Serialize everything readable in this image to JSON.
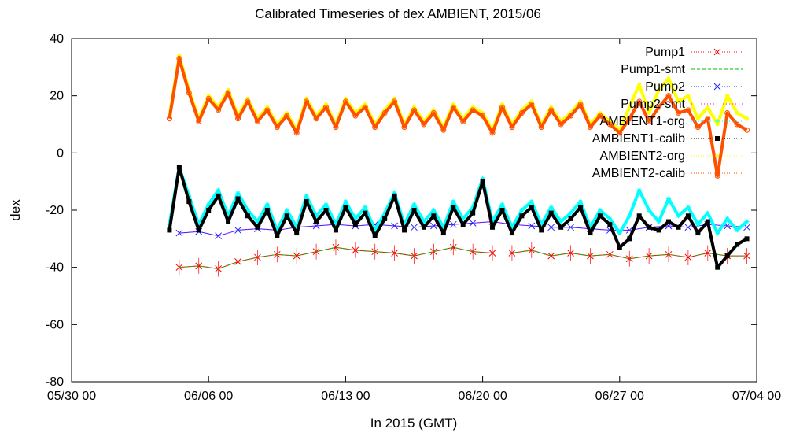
{
  "chart_data": {
    "type": "line",
    "title": "Calibrated Timeseries of dex AMBIENT, 2015/06",
    "xlabel": "In 2015 (GMT)",
    "ylabel": "dex",
    "xlim": [
      "2015-05-30 00:00",
      "2015-07-04 00:00"
    ],
    "ylim": [
      -80,
      40
    ],
    "x_ticks": [
      "05/30 00",
      "06/06 00",
      "06/13 00",
      "06/20 00",
      "06/27 00",
      "07/04 00"
    ],
    "y_ticks": [
      "40",
      "20",
      "0",
      "-20",
      "-40",
      "-60",
      "-80"
    ],
    "grid": false,
    "legend_position": "top-right",
    "series": [
      {
        "name": "Pump1",
        "color": "#ff0000",
        "marker": "x",
        "error_bars": true,
        "x": [
          "06/04 12",
          "06/05 12",
          "06/06 12",
          "06/07 12",
          "06/08 12",
          "06/09 12",
          "06/10 12",
          "06/11 12",
          "06/12 12",
          "06/13 12",
          "06/14 12",
          "06/15 12",
          "06/16 12",
          "06/17 12",
          "06/18 12",
          "06/19 12",
          "06/20 12",
          "06/21 12",
          "06/22 12",
          "06/23 12",
          "06/24 12",
          "06/25 12",
          "06/26 12",
          "06/27 12",
          "06/28 12",
          "06/29 12",
          "06/30 12",
          "07/01 12",
          "07/02 12",
          "07/03 12"
        ],
        "values": [
          -40,
          -39.5,
          -40.5,
          -38,
          -36.5,
          -35.5,
          -36,
          -34.5,
          -33,
          -34,
          -34.5,
          -35,
          -36,
          -34.5,
          -33,
          -34.5,
          -35,
          -35,
          -34,
          -36,
          -35,
          -36,
          -35.5,
          -37,
          -36,
          -35.5,
          -36.5,
          -35,
          -36,
          -36
        ]
      },
      {
        "name": "Pump1-smt",
        "color": "#00c000",
        "style": "dashed",
        "x": [
          "06/04 12",
          "06/05 12",
          "06/06 12",
          "06/07 12",
          "06/08 12",
          "06/09 12",
          "06/10 12",
          "06/11 12",
          "06/12 12",
          "06/13 12",
          "06/14 12",
          "06/15 12",
          "06/16 12",
          "06/17 12",
          "06/18 12",
          "06/19 12",
          "06/20 12",
          "06/21 12",
          "06/22 12",
          "06/23 12",
          "06/24 12",
          "06/25 12",
          "06/26 12",
          "06/27 12",
          "06/28 12",
          "06/29 12",
          "06/30 12",
          "07/01 12",
          "07/02 12",
          "07/03 12"
        ],
        "values": [
          -40,
          -39.5,
          -40.5,
          -38,
          -36.5,
          -35.5,
          -36,
          -34.5,
          -33,
          -34,
          -34.5,
          -35,
          -36,
          -34.5,
          -33,
          -34.5,
          -35,
          -35,
          -34,
          -36,
          -35,
          -36,
          -35.5,
          -37,
          -36,
          -35.5,
          -36.5,
          -35,
          -36,
          -36
        ]
      },
      {
        "name": "Pump2",
        "color": "#2020ff",
        "marker": "x",
        "x": [
          "06/04 12",
          "06/05 12",
          "06/06 12",
          "06/07 12",
          "06/08 12",
          "06/09 12",
          "06/10 12",
          "06/11 12",
          "06/12 12",
          "06/13 12",
          "06/14 12",
          "06/15 12",
          "06/16 12",
          "06/17 12",
          "06/18 12",
          "06/19 12",
          "06/20 12",
          "06/21 12",
          "06/22 12",
          "06/23 12",
          "06/24 12",
          "06/25 12",
          "06/26 12",
          "06/27 12",
          "06/28 12",
          "06/29 12",
          "06/30 12",
          "07/01 12",
          "07/02 12",
          "07/03 12"
        ],
        "values": [
          -28,
          -27.5,
          -29,
          -27,
          -26.5,
          -27,
          -26,
          -25.5,
          -25,
          -25.5,
          -25,
          -25.5,
          -26,
          -25.5,
          -25,
          -24.5,
          -24,
          -25,
          -25.5,
          -26,
          -26,
          -26.5,
          -27,
          -27,
          -26,
          -25.5,
          -26,
          -25,
          -25.5,
          -26
        ]
      },
      {
        "name": "Pump2-smt",
        "color": "#ff00ff",
        "style": "dotted",
        "x": [
          "06/04 12",
          "06/05 12",
          "06/06 12",
          "06/07 12",
          "06/08 12",
          "06/09 12",
          "06/10 12",
          "06/11 12",
          "06/12 12",
          "06/13 12",
          "06/14 12",
          "06/15 12",
          "06/16 12",
          "06/17 12",
          "06/18 12",
          "06/19 12",
          "06/20 12",
          "06/21 12",
          "06/22 12",
          "06/23 12",
          "06/24 12",
          "06/25 12",
          "06/26 12",
          "06/27 12",
          "06/28 12",
          "06/29 12",
          "06/30 12",
          "07/01 12",
          "07/02 12",
          "07/03 12"
        ],
        "values": [
          -28,
          -27.5,
          -29,
          -27,
          -26.5,
          -27,
          -26,
          -25.5,
          -25,
          -25.5,
          -25,
          -25.5,
          -26,
          -25.5,
          -25,
          -24.5,
          -24,
          -25,
          -25.5,
          -26,
          -26,
          -26.5,
          -27,
          -27,
          -26,
          -25.5,
          -26,
          -25,
          -25.5,
          -26
        ]
      },
      {
        "name": "AMBIENT1-org",
        "color": "#00ffff",
        "marker": "*",
        "x": [
          "06/04 00",
          "06/04 12",
          "06/05 00",
          "06/05 12",
          "06/06 00",
          "06/06 12",
          "06/07 00",
          "06/07 12",
          "06/08 00",
          "06/08 12",
          "06/09 00",
          "06/09 12",
          "06/10 00",
          "06/10 12",
          "06/11 00",
          "06/11 12",
          "06/12 00",
          "06/12 12",
          "06/13 00",
          "06/13 12",
          "06/14 00",
          "06/14 12",
          "06/15 00",
          "06/15 12",
          "06/16 00",
          "06/16 12",
          "06/17 00",
          "06/17 12",
          "06/18 00",
          "06/18 12",
          "06/19 00",
          "06/19 12",
          "06/20 00",
          "06/20 12",
          "06/21 00",
          "06/21 12",
          "06/22 00",
          "06/22 12",
          "06/23 00",
          "06/23 12",
          "06/24 00",
          "06/24 12",
          "06/25 00",
          "06/25 12",
          "06/26 00",
          "06/26 12",
          "06/27 00",
          "06/27 12",
          "06/28 00",
          "06/28 12",
          "06/29 00",
          "06/29 12",
          "06/30 00",
          "06/30 12",
          "07/01 00",
          "07/01 12",
          "07/02 00",
          "07/02 12",
          "07/03 00",
          "07/03 12"
        ],
        "values": [
          -25,
          -5,
          -15,
          -25,
          -18,
          -13,
          -22,
          -14,
          -20,
          -24,
          -18,
          -27,
          -20,
          -26,
          -15,
          -22,
          -18,
          -25,
          -17,
          -23,
          -19,
          -27,
          -21,
          -14,
          -25,
          -18,
          -24,
          -20,
          -26,
          -17,
          -23,
          -19,
          -9,
          -24,
          -18,
          -26,
          -20,
          -17,
          -25,
          -19,
          -24,
          -21,
          -17,
          -26,
          -20,
          -23,
          -28,
          -22,
          -13,
          -20,
          -24,
          -16,
          -22,
          -19,
          -25,
          -21,
          -28,
          -23,
          -27,
          -24
        ]
      },
      {
        "name": "AMBIENT1-calib",
        "color": "#000000",
        "marker": "square",
        "x": [
          "06/04 00",
          "06/04 12",
          "06/05 00",
          "06/05 12",
          "06/06 00",
          "06/06 12",
          "06/07 00",
          "06/07 12",
          "06/08 00",
          "06/08 12",
          "06/09 00",
          "06/09 12",
          "06/10 00",
          "06/10 12",
          "06/11 00",
          "06/11 12",
          "06/12 00",
          "06/12 12",
          "06/13 00",
          "06/13 12",
          "06/14 00",
          "06/14 12",
          "06/15 00",
          "06/15 12",
          "06/16 00",
          "06/16 12",
          "06/17 00",
          "06/17 12",
          "06/18 00",
          "06/18 12",
          "06/19 00",
          "06/19 12",
          "06/20 00",
          "06/20 12",
          "06/21 00",
          "06/21 12",
          "06/22 00",
          "06/22 12",
          "06/23 00",
          "06/23 12",
          "06/24 00",
          "06/24 12",
          "06/25 00",
          "06/25 12",
          "06/26 00",
          "06/26 12",
          "06/27 00",
          "06/27 12",
          "06/28 00",
          "06/28 12",
          "06/29 00",
          "06/29 12",
          "06/30 00",
          "06/30 12",
          "07/01 00",
          "07/01 12",
          "07/02 00",
          "07/02 12",
          "07/03 00",
          "07/03 12"
        ],
        "values": [
          -27,
          -5,
          -17,
          -27,
          -20,
          -15,
          -24,
          -16,
          -22,
          -26,
          -20,
          -29,
          -22,
          -28,
          -17,
          -24,
          -20,
          -27,
          -19,
          -25,
          -21,
          -29,
          -23,
          -15,
          -27,
          -20,
          -26,
          -22,
          -28,
          -19,
          -25,
          -21,
          -10,
          -26,
          -20,
          -28,
          -22,
          -19,
          -27,
          -21,
          -26,
          -23,
          -19,
          -28,
          -22,
          -25,
          -33,
          -30,
          -22,
          -26,
          -27,
          -24,
          -26,
          -22,
          -28,
          -24,
          -40,
          -36,
          -32,
          -30
        ]
      },
      {
        "name": "AMBIENT2-org",
        "color": "#ffff00",
        "marker": "dot",
        "x": [
          "06/04 00",
          "06/04 12",
          "06/05 00",
          "06/05 12",
          "06/06 00",
          "06/06 12",
          "06/07 00",
          "06/07 12",
          "06/08 00",
          "06/08 12",
          "06/09 00",
          "06/09 12",
          "06/10 00",
          "06/10 12",
          "06/11 00",
          "06/11 12",
          "06/12 00",
          "06/12 12",
          "06/13 00",
          "06/13 12",
          "06/14 00",
          "06/14 12",
          "06/15 00",
          "06/15 12",
          "06/16 00",
          "06/16 12",
          "06/17 00",
          "06/17 12",
          "06/18 00",
          "06/18 12",
          "06/19 00",
          "06/19 12",
          "06/20 00",
          "06/20 12",
          "06/21 00",
          "06/21 12",
          "06/22 00",
          "06/22 12",
          "06/23 00",
          "06/23 12",
          "06/24 00",
          "06/24 12",
          "06/25 00",
          "06/25 12",
          "06/26 00",
          "06/26 12",
          "06/27 00",
          "06/27 12",
          "06/28 00",
          "06/28 12",
          "06/29 00",
          "06/29 12",
          "06/30 00",
          "06/30 12",
          "07/01 00",
          "07/01 12",
          "07/02 00",
          "07/02 12",
          "07/03 00",
          "07/03 12"
        ],
        "values": [
          13,
          34,
          22,
          12,
          20,
          16,
          22,
          13,
          19,
          12,
          16,
          10,
          14,
          8,
          19,
          13,
          17,
          10,
          19,
          14,
          17,
          10,
          15,
          19,
          10,
          16,
          11,
          15,
          9,
          17,
          12,
          16,
          14,
          8,
          17,
          10,
          15,
          18,
          10,
          16,
          11,
          14,
          18,
          10,
          14,
          11,
          8,
          16,
          24,
          14,
          22,
          26,
          18,
          20,
          12,
          16,
          10,
          20,
          14,
          12
        ]
      },
      {
        "name": "AMBIENT2-calib",
        "color": "#ff5000",
        "marker": "circle",
        "x": [
          "06/04 00",
          "06/04 12",
          "06/05 00",
          "06/05 12",
          "06/06 00",
          "06/06 12",
          "06/07 00",
          "06/07 12",
          "06/08 00",
          "06/08 12",
          "06/09 00",
          "06/09 12",
          "06/10 00",
          "06/10 12",
          "06/11 00",
          "06/11 12",
          "06/12 00",
          "06/12 12",
          "06/13 00",
          "06/13 12",
          "06/14 00",
          "06/14 12",
          "06/15 00",
          "06/15 12",
          "06/16 00",
          "06/16 12",
          "06/17 00",
          "06/17 12",
          "06/18 00",
          "06/18 12",
          "06/19 00",
          "06/19 12",
          "06/20 00",
          "06/20 12",
          "06/21 00",
          "06/21 12",
          "06/22 00",
          "06/22 12",
          "06/23 00",
          "06/23 12",
          "06/24 00",
          "06/24 12",
          "06/25 00",
          "06/25 12",
          "06/26 00",
          "06/26 12",
          "06/27 00",
          "06/27 12",
          "06/28 00",
          "06/28 12",
          "06/29 00",
          "06/29 12",
          "06/30 00",
          "06/30 12",
          "07/01 00",
          "07/01 12",
          "07/02 00",
          "07/02 12",
          "07/03 00",
          "07/03 12"
        ],
        "values": [
          12,
          33,
          21,
          11,
          19,
          15,
          21,
          12,
          18,
          11,
          15,
          9,
          13,
          7,
          18,
          12,
          16,
          9,
          18,
          13,
          16,
          9,
          14,
          18,
          9,
          15,
          10,
          14,
          8,
          16,
          11,
          15,
          13,
          7,
          16,
          9,
          14,
          17,
          9,
          15,
          10,
          13,
          17,
          9,
          13,
          10,
          7,
          12,
          18,
          11,
          16,
          20,
          14,
          15,
          9,
          12,
          -8,
          14,
          10,
          8
        ]
      }
    ]
  }
}
